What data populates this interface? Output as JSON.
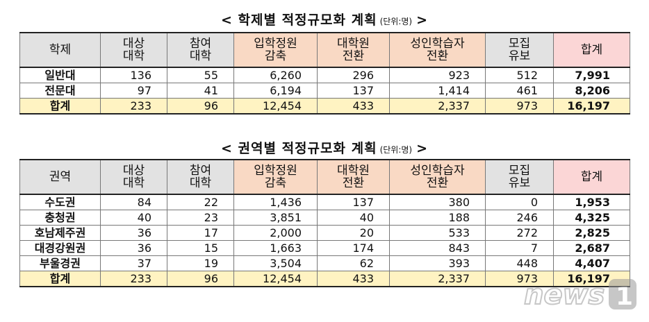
{
  "table1": {
    "title": "< 학제별 적정규모화 계획",
    "unit": "(단위:명)",
    "title_end": ">",
    "headers": [
      [
        "학제"
      ],
      [
        "대상",
        "대학"
      ],
      [
        "참여",
        "대학"
      ],
      [
        "입학정원",
        "감축"
      ],
      [
        "대학원",
        "전환"
      ],
      [
        "성인학습자",
        "전환"
      ],
      [
        "모집",
        "유보"
      ],
      [
        "합계"
      ]
    ],
    "rows": [
      [
        "일반대",
        "136",
        "55",
        "6,260",
        "296",
        "923",
        "512",
        "7,991"
      ],
      [
        "전문대",
        "97",
        "41",
        "6,194",
        "137",
        "1,414",
        "461",
        "8,206"
      ],
      [
        "합계",
        "233",
        "96",
        "12,454",
        "433",
        "2,337",
        "973",
        "16,197"
      ]
    ]
  },
  "table2": {
    "title": "< 권역별 적정규모화 계획",
    "unit": "(단위:명)",
    "title_end": ">",
    "headers": [
      [
        "권역"
      ],
      [
        "대상",
        "대학"
      ],
      [
        "참여",
        "대학"
      ],
      [
        "입학정원",
        "감축"
      ],
      [
        "대학원",
        "전환"
      ],
      [
        "성인학습자",
        "전환"
      ],
      [
        "모집",
        "유보"
      ],
      [
        "합계"
      ]
    ],
    "rows": [
      [
        "수도권",
        "84",
        "22",
        "1,436",
        "137",
        "380",
        "0",
        "1,953"
      ],
      [
        "충청권",
        "40",
        "23",
        "3,851",
        "40",
        "188",
        "246",
        "4,325"
      ],
      [
        "호남제주권",
        "36",
        "17",
        "2,000",
        "20",
        "533",
        "272",
        "2,825"
      ],
      [
        "대경강원권",
        "36",
        "15",
        "1,663",
        "174",
        "843",
        "7",
        "2,687"
      ],
      [
        "부울경권",
        "37",
        "19",
        "3,504",
        "62",
        "393",
        "448",
        "4,407"
      ],
      [
        "합계",
        "233",
        "96",
        "12,454",
        "433",
        "2,337",
        "973",
        "16,197"
      ]
    ]
  },
  "header_colors": [
    "#e2e2e2",
    "#e2e2e2",
    "#e2e2e2",
    "#f9d9c4",
    "#f9d9c4",
    "#f9d9c4",
    "#e2e2e2",
    "#fbd6d6"
  ],
  "total_row_color": "#fff3c2",
  "watermark": "news1"
}
